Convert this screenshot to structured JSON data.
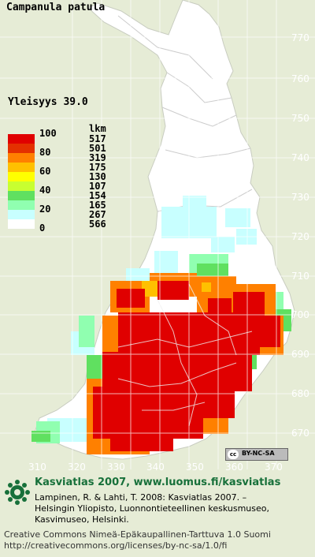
{
  "title": "Campanula patula",
  "frequency_label": "Yleisyys  39.0",
  "legend": {
    "count_header": "lkm",
    "percent_labels": [
      "100",
      "80",
      "60",
      "40",
      "20",
      "0"
    ],
    "classes": [
      {
        "color": "#e00000",
        "count": "517"
      },
      {
        "color": "#e43000",
        "count": "501"
      },
      {
        "color": "#ff8000",
        "count": "319"
      },
      {
        "color": "#ffc000",
        "count": "175"
      },
      {
        "color": "#ffff00",
        "count": "130"
      },
      {
        "color": "#c8ff30",
        "count": "107"
      },
      {
        "color": "#60e060",
        "count": "154"
      },
      {
        "color": "#90ffb0",
        "count": "165"
      },
      {
        "color": "#c8ffff",
        "count": "267"
      },
      {
        "color": "#ffffff",
        "count": "566"
      }
    ]
  },
  "axes": {
    "y_labels": [
      "770",
      "760",
      "750",
      "740",
      "730",
      "720",
      "710",
      "700",
      "690",
      "680",
      "670"
    ],
    "x_labels": [
      "310",
      "320",
      "330",
      "340",
      "350",
      "360",
      "370"
    ]
  },
  "badge": {
    "text": "BY-NC-SA",
    "cc": "cc"
  },
  "footer": {
    "title": "Kasviatlas 2007, www.luomus.fi/kasviatlas",
    "citation": [
      "Lampinen, R. & Lahti, T. 2008: Kasviatlas 2007. –",
      "Helsingin Yliopisto, Luonnontieteellinen keskusmuseo,",
      "Kasvimuseo, Helsinki."
    ],
    "license": [
      "Creative Commons Nimeä-Epäkaupallinen-Tarttuva 1.0 Suomi",
      "http://creativecommons.org/licenses/by-nc-sa/1.0/fi"
    ]
  },
  "colors": {
    "background": "#e6ecd6",
    "land": "#ffffff",
    "brand_green": "#17703a"
  }
}
